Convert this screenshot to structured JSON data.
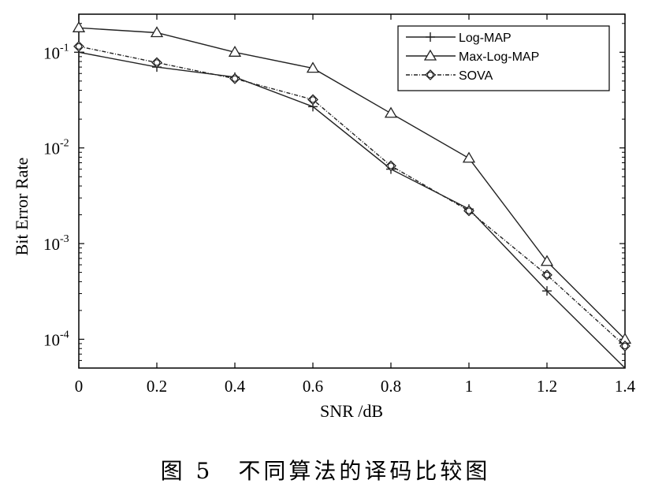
{
  "chart_data": {
    "type": "line",
    "xlabel": "SNR /dB",
    "ylabel": "Bit Error Rate",
    "yscale": "log",
    "xlim": [
      0,
      1.4
    ],
    "ylim": [
      5e-05,
      0.25
    ],
    "x_ticks": [
      "0",
      "0.2",
      "0.4",
      "0.6",
      "0.8",
      "1",
      "1.2",
      "1.4"
    ],
    "y_ticks": [
      {
        "base": "10",
        "exp": "-1",
        "value": 0.1
      },
      {
        "base": "10",
        "exp": "-2",
        "value": 0.01
      },
      {
        "base": "10",
        "exp": "-3",
        "value": 0.001
      },
      {
        "base": "10",
        "exp": "-4",
        "value": 0.0001
      }
    ],
    "x": [
      0,
      0.2,
      0.4,
      0.6,
      0.8,
      1.0,
      1.2,
      1.4
    ],
    "series": [
      {
        "name": "Log-MAP",
        "marker": "plus",
        "values": [
          0.1,
          0.07,
          0.055,
          0.027,
          0.006,
          0.0023,
          0.00032,
          4e-05
        ]
      },
      {
        "name": "Max-Log-MAP",
        "marker": "triangle",
        "values": [
          0.18,
          0.16,
          0.1,
          0.068,
          0.023,
          0.0078,
          0.00065,
          0.0001
        ]
      },
      {
        "name": "SOVA",
        "marker": "diamond",
        "values": [
          0.115,
          0.078,
          0.053,
          0.032,
          0.0065,
          0.0022,
          0.00047,
          8.5e-05
        ]
      }
    ],
    "legend_position": "top-right",
    "grid": false
  },
  "caption": "图 5　不同算法的译码比较图"
}
